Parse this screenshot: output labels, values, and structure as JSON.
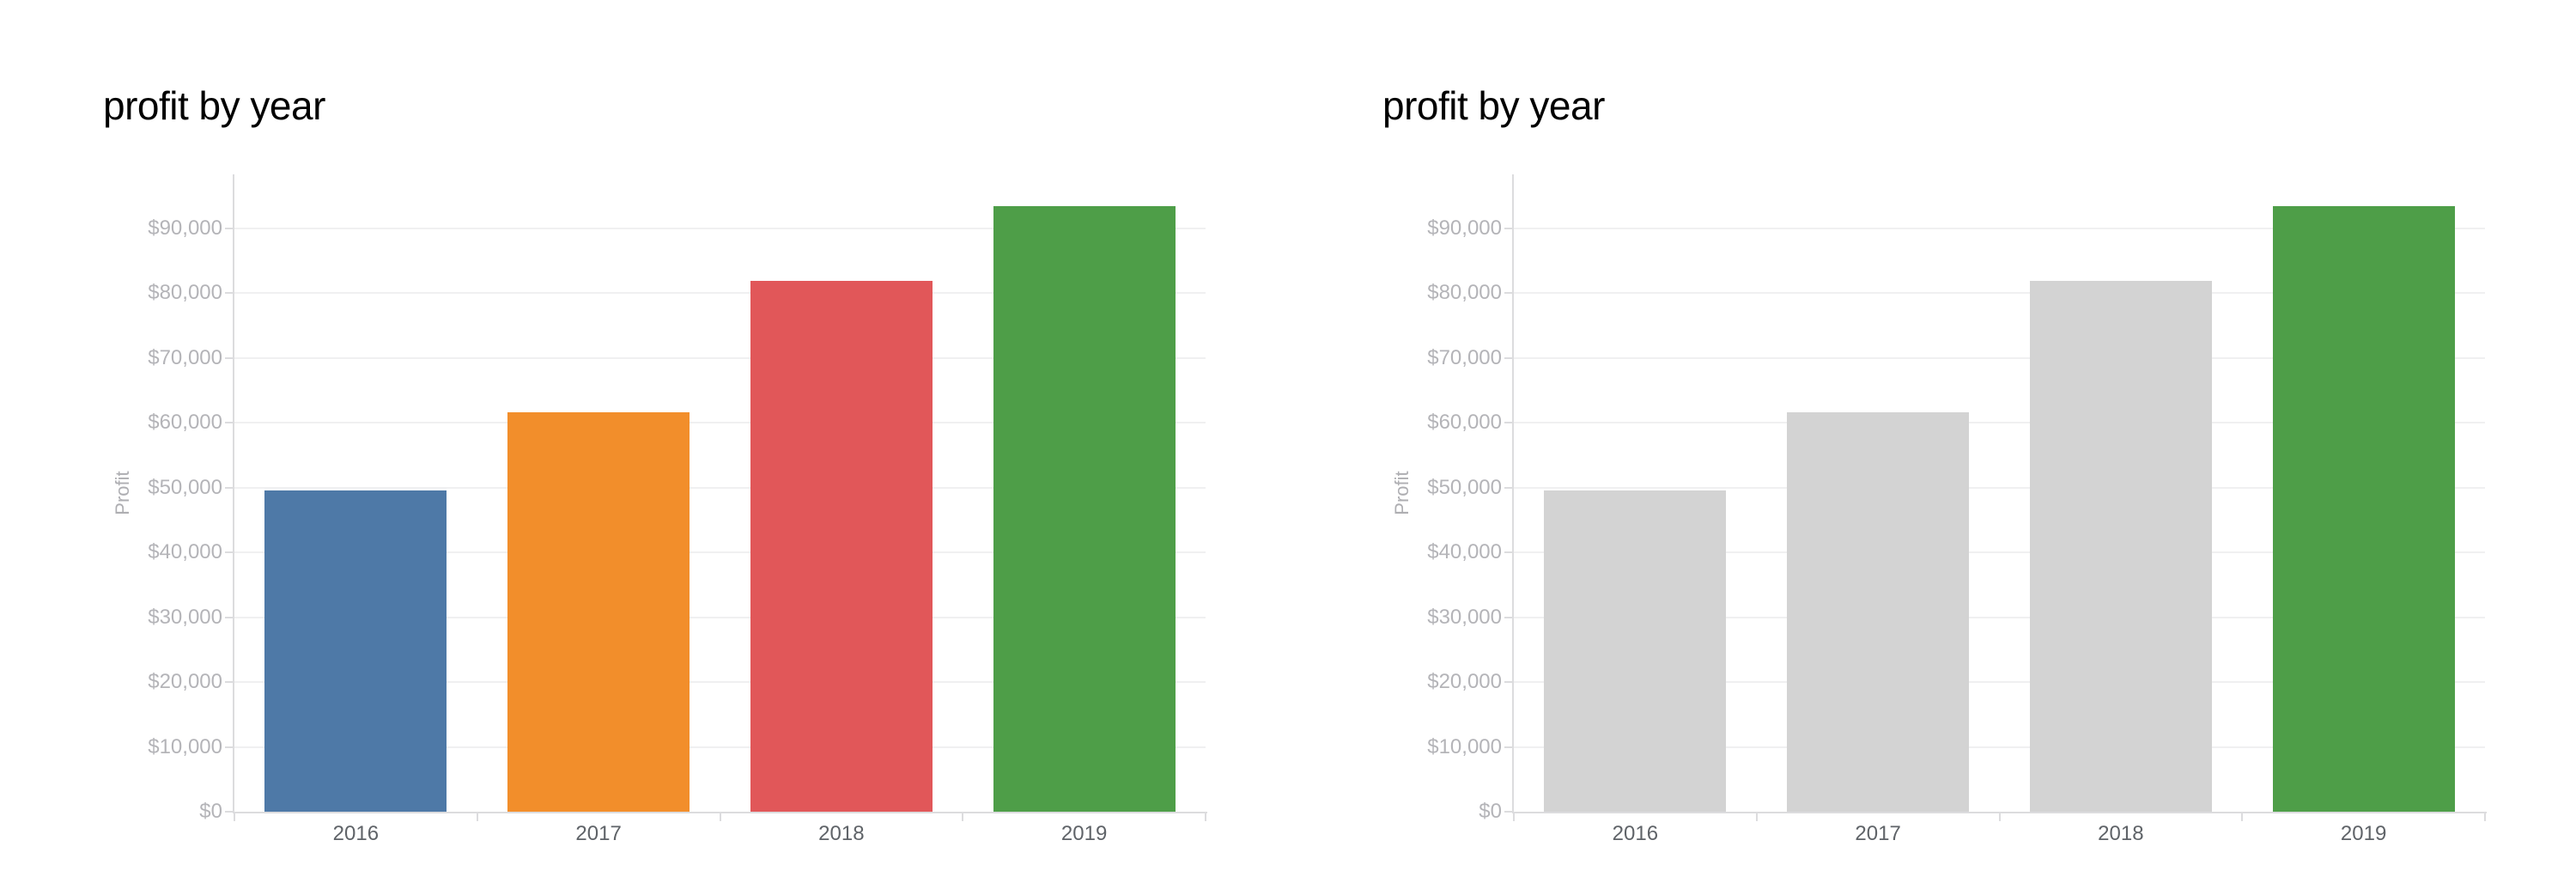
{
  "page": {
    "background": "#ffffff"
  },
  "chart_data": [
    {
      "type": "bar",
      "title": "profit by year",
      "xlabel": "",
      "ylabel": "Profit",
      "categories": [
        "2016",
        "2017",
        "2018",
        "2019"
      ],
      "values": [
        49544,
        61619,
        81795,
        93439
      ],
      "bar_colors": [
        "#4e79a7",
        "#f28e2b",
        "#e15759",
        "#4e9e48"
      ],
      "y_tick_labels": [
        "$0",
        "$10,000",
        "$20,000",
        "$30,000",
        "$40,000",
        "$50,000",
        "$60,000",
        "$70,000",
        "$80,000",
        "$90,000"
      ],
      "y_tick_values": [
        0,
        10000,
        20000,
        30000,
        40000,
        50000,
        60000,
        70000,
        80000,
        90000
      ],
      "ylim": [
        0,
        98200
      ],
      "grid": "horizontal",
      "legend": "none"
    },
    {
      "type": "bar",
      "title": "profit by year",
      "xlabel": "",
      "ylabel": "Profit",
      "categories": [
        "2016",
        "2017",
        "2018",
        "2019"
      ],
      "values": [
        49544,
        61619,
        81795,
        93439
      ],
      "bar_colors": [
        "#d3d3d3",
        "#d3d3d3",
        "#d3d3d3",
        "#4e9e48"
      ],
      "y_tick_labels": [
        "$0",
        "$10,000",
        "$20,000",
        "$30,000",
        "$40,000",
        "$50,000",
        "$60,000",
        "$70,000",
        "$80,000",
        "$90,000"
      ],
      "y_tick_values": [
        0,
        10000,
        20000,
        30000,
        40000,
        50000,
        60000,
        70000,
        80000,
        90000
      ],
      "ylim": [
        0,
        98200
      ],
      "grid": "horizontal",
      "legend": "none"
    }
  ]
}
